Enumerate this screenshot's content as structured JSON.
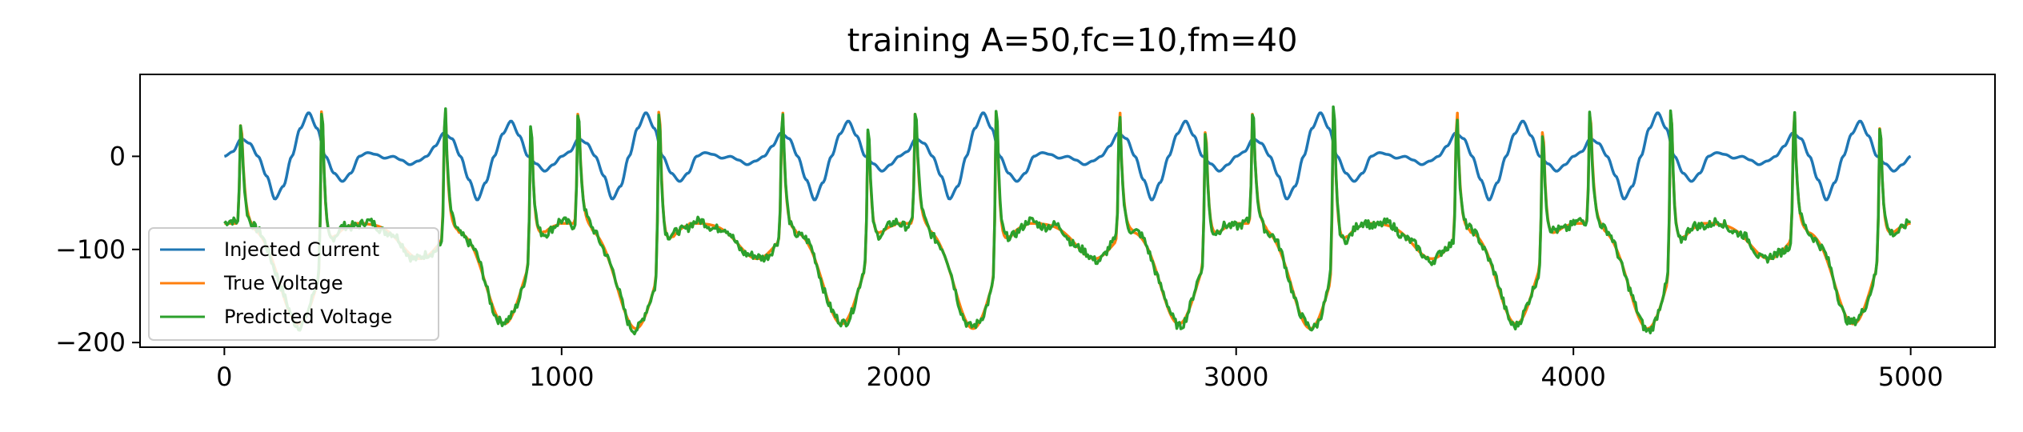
{
  "chart_data": {
    "type": "line",
    "title": "training A=50,fc=10,fm=40",
    "xlabel": "",
    "ylabel": "",
    "xlim": [
      -250,
      5250
    ],
    "ylim": [
      -205,
      88
    ],
    "xticks": [
      0,
      1000,
      2000,
      3000,
      4000,
      5000
    ],
    "xtick_labels": [
      "0",
      "1000",
      "2000",
      "3000",
      "4000",
      "5000"
    ],
    "yticks": [
      0,
      -100,
      -200
    ],
    "ytick_labels": [
      "0",
      "−100",
      "−200"
    ],
    "grid": false,
    "legend_position": "lower-left",
    "series": [
      {
        "name": "Injected Current",
        "color": "#1f77b4",
        "description_params": {
          "x_start": 0,
          "x_end": 5000,
          "carrier_period": 100,
          "modulation_period": 1000,
          "peak": 47
        },
        "x": [
          0,
          25,
          50,
          75,
          100,
          125,
          150,
          175,
          200,
          225,
          250,
          275,
          300,
          325,
          350,
          375,
          400,
          425,
          450,
          475,
          500,
          525,
          550,
          575,
          600,
          625,
          650,
          675,
          700,
          725,
          750,
          775,
          800,
          825,
          850,
          875,
          900,
          925,
          950,
          975,
          1000
        ],
        "y": [
          0,
          5,
          19,
          14,
          0,
          -21,
          -46,
          -32,
          0,
          30,
          47,
          30,
          0,
          -18,
          -27,
          -18,
          0,
          4,
          2,
          -2,
          0,
          -4,
          -9,
          -5,
          0,
          11,
          25,
          19,
          0,
          -25,
          -47,
          -28,
          0,
          24,
          38,
          22,
          0,
          -8,
          -16,
          -9,
          0
        ]
      },
      {
        "name": "True Voltage",
        "color": "#ff7f0e",
        "description": "spiking membrane voltage, resting near -70, spikes up to ~70, troughs down to ~-185",
        "peaks_x": [
          50,
          290,
          655,
          910,
          1050,
          1290,
          1655,
          1910,
          2050,
          2290,
          2655,
          2910,
          3050,
          3290,
          3655,
          3910,
          4050,
          4290,
          4655,
          4910
        ],
        "peaks_y": [
          48,
          72,
          65,
          50,
          62,
          72,
          62,
          45,
          62,
          72,
          62,
          45,
          62,
          72,
          62,
          45,
          62,
          72,
          62,
          50
        ],
        "troughs_x": [
          220,
          580,
          830,
          1220,
          1580,
          1830,
          2220,
          2580,
          2830,
          3220,
          3580,
          3830,
          4220,
          4580,
          4830
        ],
        "troughs_y": [
          -180,
          -110,
          -180,
          -185,
          -110,
          -180,
          -185,
          -110,
          -180,
          -185,
          -110,
          -180,
          -185,
          -110,
          -180
        ]
      },
      {
        "name": "Predicted Voltage",
        "color": "#2ca02c",
        "description": "prediction tracking the true voltage with small noisy deviations"
      }
    ]
  }
}
